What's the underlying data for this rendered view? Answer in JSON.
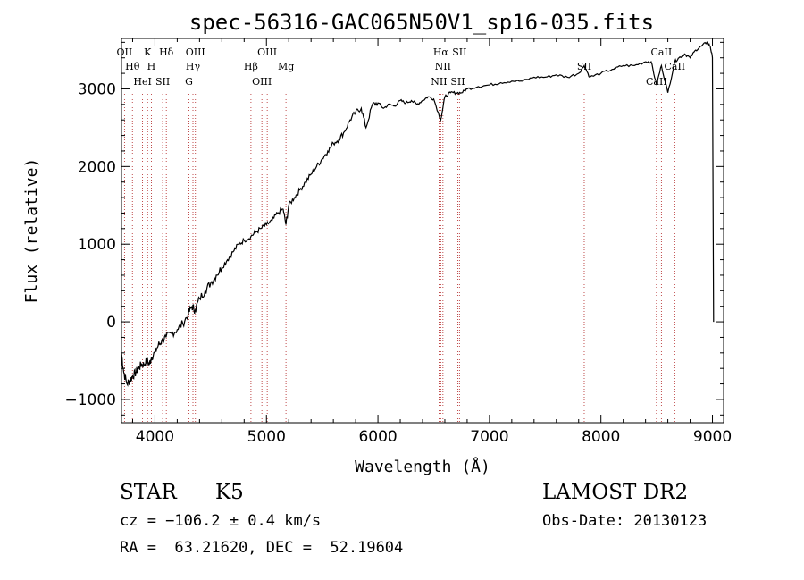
{
  "footer": {
    "object_class": "STAR",
    "subclass": "K5",
    "survey": "LAMOST DR2",
    "redshift_line": "cz = −106.2 ± 0.4 km/s",
    "obs_date": "Obs-Date: 20130123",
    "coords_line": "RA =  63.21620, DEC =  52.19604"
  },
  "chart_data": {
    "type": "line",
    "title": "spec-56316-GAC065N50V1_sp16-035.fits",
    "xlabel": "Wavelength (Å)",
    "ylabel": "Flux (relative)",
    "xlim": [
      3700,
      9100
    ],
    "ylim": [
      -1300,
      3650
    ],
    "x_ticks": [
      4000,
      5000,
      6000,
      7000,
      8000,
      9000
    ],
    "y_ticks": [
      -1000,
      0,
      1000,
      2000,
      3000
    ],
    "grid": false,
    "series": [
      {
        "color": "#000000",
        "x": [
          3700,
          3720,
          3750,
          3780,
          3800,
          3830,
          3850,
          3880,
          3900,
          3930,
          3950,
          3970,
          4000,
          4030,
          4060,
          4100,
          4150,
          4200,
          4250,
          4300,
          4330,
          4360,
          4400,
          4450,
          4500,
          4550,
          4600,
          4650,
          4700,
          4750,
          4800,
          4861,
          4900,
          4950,
          5000,
          5050,
          5100,
          5150,
          5175,
          5200,
          5250,
          5300,
          5350,
          5400,
          5450,
          5500,
          5550,
          5600,
          5650,
          5700,
          5750,
          5800,
          5850,
          5893,
          5950,
          6000,
          6050,
          6100,
          6150,
          6200,
          6250,
          6300,
          6350,
          6400,
          6450,
          6500,
          6563,
          6600,
          6650,
          6700,
          6750,
          6800,
          6900,
          7000,
          7100,
          7200,
          7300,
          7400,
          7500,
          7600,
          7700,
          7800,
          7850,
          7900,
          8000,
          8100,
          8200,
          8300,
          8400,
          8450,
          8498,
          8542,
          8600,
          8662,
          8700,
          8750,
          8800,
          8850,
          8900,
          8950,
          8980,
          9000,
          9010
        ],
        "y": [
          -400,
          -650,
          -800,
          -750,
          -700,
          -650,
          -600,
          -550,
          -550,
          -500,
          -550,
          -450,
          -400,
          -300,
          -250,
          -200,
          -150,
          -100,
          -20,
          100,
          200,
          150,
          300,
          400,
          500,
          600,
          700,
          800,
          900,
          1000,
          1050,
          1100,
          1150,
          1200,
          1250,
          1300,
          1400,
          1450,
          1250,
          1500,
          1600,
          1700,
          1800,
          1900,
          2000,
          2100,
          2200,
          2300,
          2350,
          2450,
          2600,
          2700,
          2750,
          2500,
          2800,
          2820,
          2750,
          2800,
          2780,
          2850,
          2820,
          2850,
          2800,
          2850,
          2900,
          2870,
          2600,
          2900,
          2950,
          2950,
          2950,
          3000,
          3030,
          3050,
          3080,
          3100,
          3100,
          3150,
          3150,
          3180,
          3150,
          3200,
          3300,
          3150,
          3200,
          3250,
          3300,
          3300,
          3350,
          3350,
          3050,
          3300,
          2950,
          3350,
          3400,
          3450,
          3400,
          3500,
          3550,
          3600,
          3550,
          3400,
          0
        ]
      }
    ],
    "line_markers": [
      {
        "label": "OII",
        "wavelength": 3727
      },
      {
        "label": "Hθ",
        "wavelength": 3798
      },
      {
        "label": "HeI",
        "wavelength": 3889
      },
      {
        "label": "K",
        "wavelength": 3934
      },
      {
        "label": "H",
        "wavelength": 3968
      },
      {
        "label": "SII",
        "wavelength": 4069
      },
      {
        "label": "Hδ",
        "wavelength": 4102
      },
      {
        "label": "Hγ",
        "wavelength": 4341
      },
      {
        "label": "G",
        "wavelength": 4305
      },
      {
        "label": "OIII",
        "wavelength": 4363
      },
      {
        "label": "Hβ",
        "wavelength": 4861
      },
      {
        "label": "OIII",
        "wavelength": 4959
      },
      {
        "label": "OIII",
        "wavelength": 5007
      },
      {
        "label": "Mg",
        "wavelength": 5175
      },
      {
        "label": "NII",
        "wavelength": 6548
      },
      {
        "label": "Hα",
        "wavelength": 6563
      },
      {
        "label": "NII",
        "wavelength": 6583
      },
      {
        "label": "SII",
        "wavelength": 6716
      },
      {
        "label": "SII",
        "wavelength": 6731
      },
      {
        "label": "SII",
        "wavelength": 7850
      },
      {
        "label": "CaII",
        "wavelength": 8498
      },
      {
        "label": "CaII",
        "wavelength": 8542
      },
      {
        "label": "CaII",
        "wavelength": 8662
      }
    ]
  }
}
